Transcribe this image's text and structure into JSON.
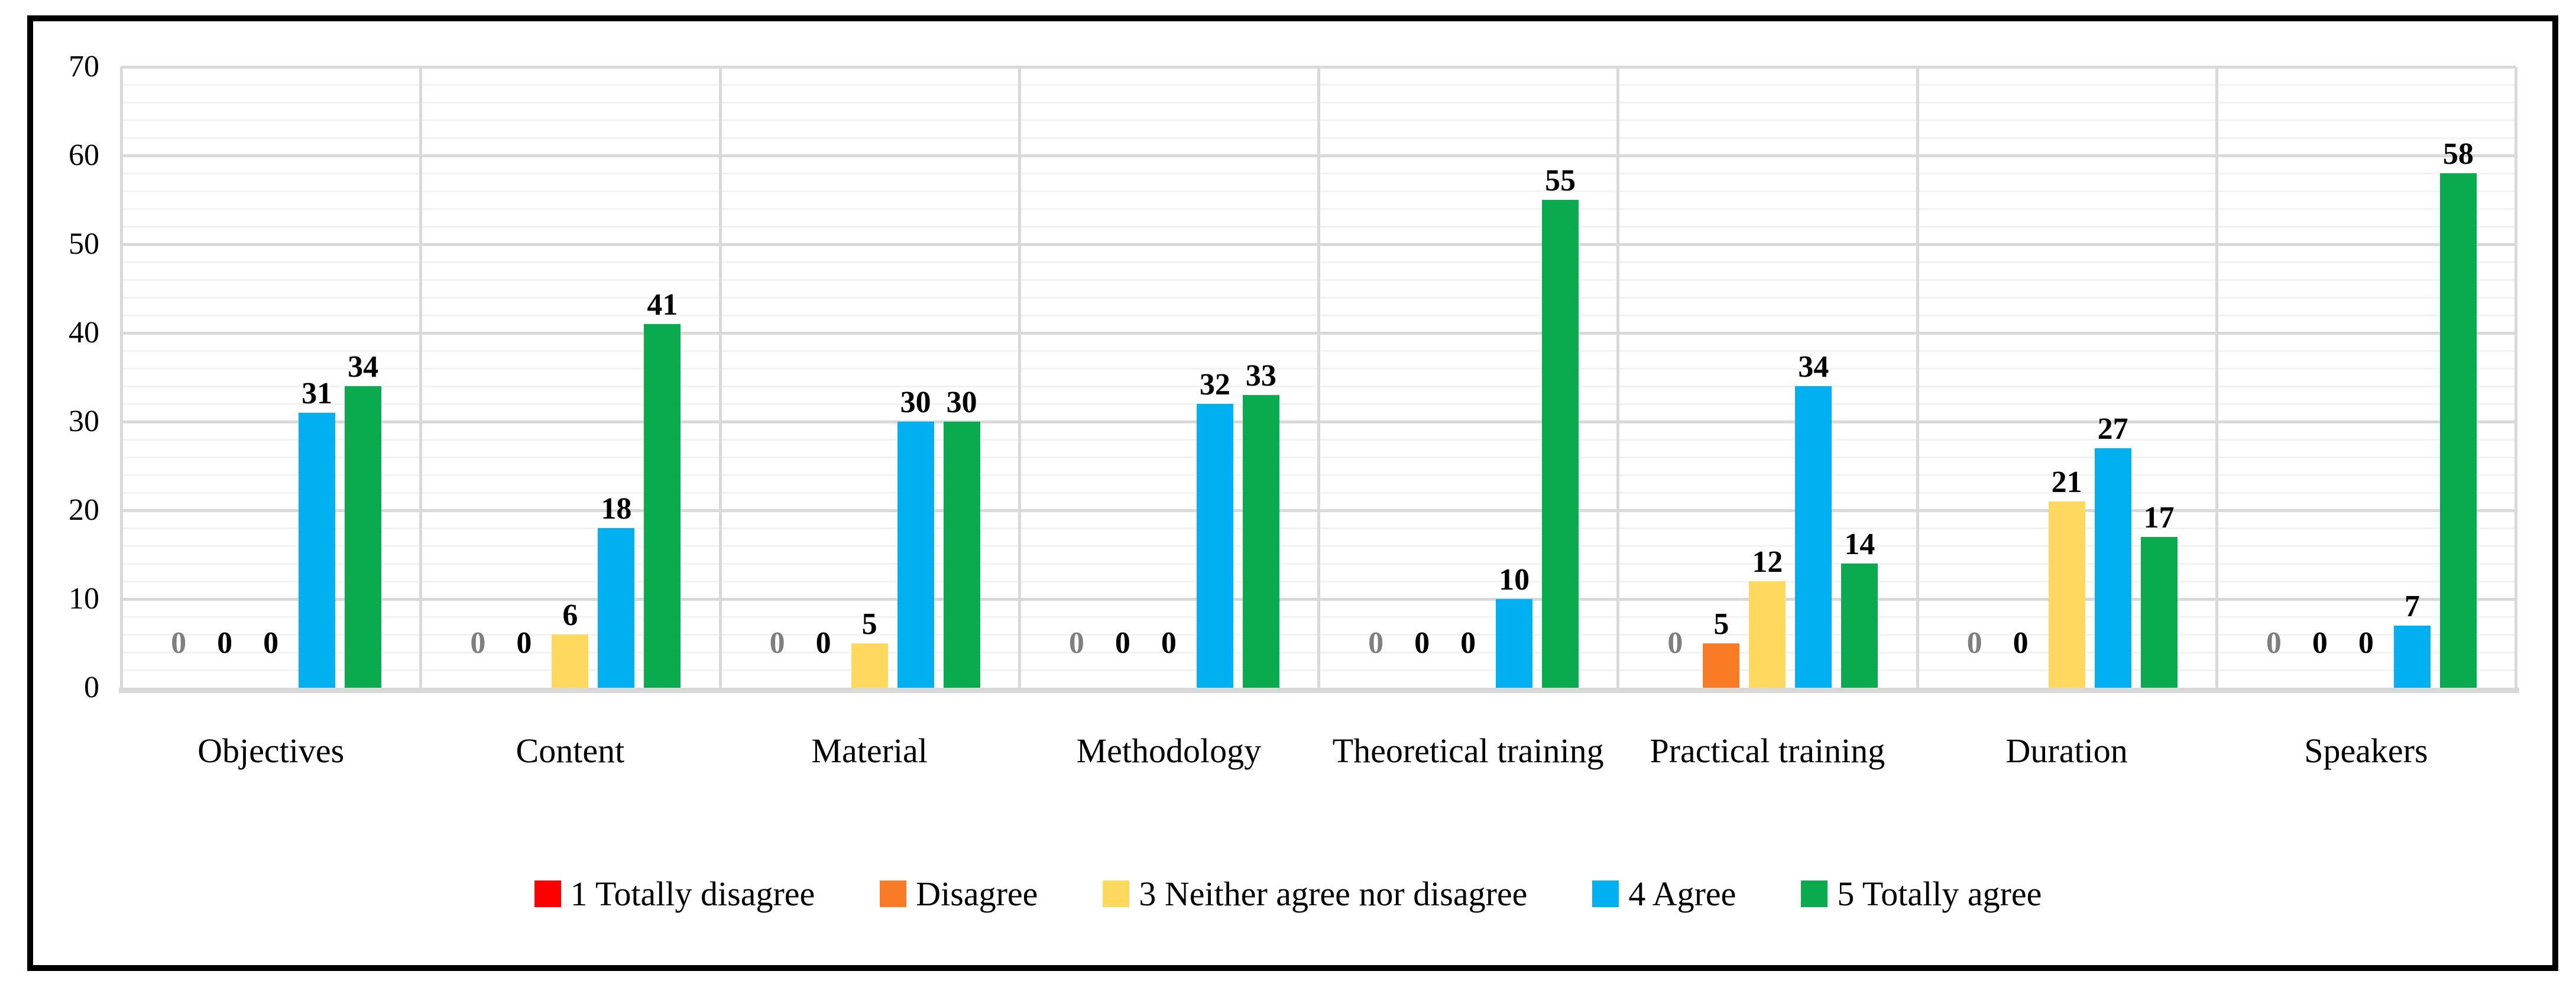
{
  "figure": {
    "background": "#FFFFFF",
    "border_color": "#000000"
  },
  "chart_data": {
    "type": "bar",
    "title": "",
    "xlabel": "",
    "ylabel": "",
    "categories": [
      "Objectives",
      "Content",
      "Material",
      "Methodology",
      "Theoretical training",
      "Practical training",
      "Duration",
      "Speakers"
    ],
    "series": [
      {
        "name": "1 Totally disagree",
        "color": "#FF0000",
        "label_color": "#7F7F7F",
        "values": [
          0,
          0,
          0,
          0,
          0,
          0,
          0,
          0
        ]
      },
      {
        "name": "Disagree",
        "color": "#F97B25",
        "label_color": "#000000",
        "values": [
          0,
          0,
          0,
          0,
          0,
          5,
          0,
          0
        ]
      },
      {
        "name": "3 Neither agree nor disagree",
        "color": "#FFD95E",
        "label_color": "#000000",
        "values": [
          0,
          6,
          5,
          0,
          0,
          12,
          21,
          0
        ]
      },
      {
        "name": "4 Agree",
        "color": "#00B0F0",
        "label_color": "#000000",
        "values": [
          31,
          18,
          30,
          32,
          10,
          34,
          27,
          7
        ]
      },
      {
        "name": "5 Totally agree",
        "color": "#0AAB4E",
        "label_color": "#000000",
        "values": [
          34,
          41,
          30,
          33,
          55,
          14,
          17,
          58
        ]
      }
    ],
    "value_labels_shown": true,
    "y_axis": {
      "min": 0,
      "max": 70,
      "tick_step": 10,
      "tick_labels": [
        "0",
        "10",
        "20",
        "30",
        "40",
        "50",
        "60",
        "70"
      ],
      "minor_gridline_step": 2
    },
    "grid": {
      "major_color": "#D9D9D9",
      "minor_color": "#F2F2F2",
      "axis_line_color": "#D9D9D9",
      "vertical_separators": true
    },
    "legend": {
      "position": "bottom",
      "entries": [
        "1 Totally disagree",
        "Disagree",
        "3 Neither agree nor disagree",
        "4 Agree",
        "5 Totally agree"
      ]
    }
  }
}
